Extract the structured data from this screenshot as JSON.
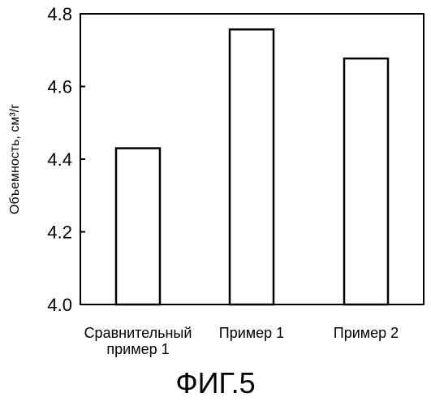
{
  "chart_data": {
    "type": "bar",
    "categories": [
      "Сравнительный\nпример 1",
      "Пример 1",
      "Пример 2"
    ],
    "values": [
      4.43,
      4.757,
      4.677
    ],
    "ylabel": "Объемность, см³/г",
    "ylim": [
      4.0,
      4.8
    ],
    "yticks": [
      "4.0",
      "4.2",
      "4.4",
      "4.6",
      "4.8"
    ],
    "grid": false,
    "legend": "none",
    "bar_fill": "#ffffff",
    "bar_stroke": "#000000"
  },
  "figure_caption": "ФИГ.5"
}
